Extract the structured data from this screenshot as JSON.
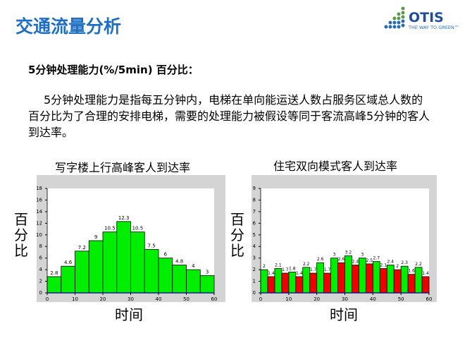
{
  "title": "交通流量分析",
  "logo": {
    "brand": "OTIS",
    "tagline": "THE WAY TO GREEN™"
  },
  "subtitle": "5分钟处理能力(%/5min) 百分比：",
  "paragraph": "5分钟处理能力是指每五分钟内，电梯在单向能运送人数占服务区域总人数的百分比为了合理的安排电梯，需要的处理能力被假设等同于客流高峰5分钟的客人到达率。",
  "chart_data": [
    {
      "type": "bar",
      "title": "写字楼上行高峰客人到达率",
      "xlabel": "时间",
      "ylabel": "百分比",
      "x": [
        0,
        5,
        10,
        15,
        20,
        25,
        30,
        35,
        40,
        45,
        50,
        55
      ],
      "bin_width": 5,
      "values": [
        2.8,
        4.6,
        7.2,
        9,
        10.5,
        12.3,
        10.5,
        7.5,
        6,
        4.8,
        4,
        3
      ],
      "xlim": [
        0,
        60
      ],
      "ylim": [
        0,
        18
      ],
      "xticks": [
        0,
        10,
        20,
        30,
        40,
        50,
        60
      ],
      "yticks": [
        0,
        2,
        4,
        6,
        8,
        10,
        12,
        14,
        16,
        18
      ],
      "colors": [
        "#00ee00"
      ]
    },
    {
      "type": "bar",
      "title": "住宅双向模式客人到达率",
      "xlabel": "时间",
      "ylabel": "百分比",
      "x": [
        0,
        5,
        10,
        15,
        20,
        25,
        30,
        35,
        40,
        45,
        50,
        55
      ],
      "bin_width": 5,
      "series": [
        {
          "values": [
            2,
            2.1,
            1.8,
            2.2,
            2.6,
            3,
            3.2,
            3,
            2.7,
            2.4,
            2.3,
            2.2
          ],
          "color": "#00ee00"
        },
        {
          "values": [
            1.4,
            1.7,
            1.4,
            1.7,
            1.7,
            2.6,
            2.4,
            2.5,
            2.1,
            2,
            1.6,
            1.4
          ],
          "color": "#ee0000"
        }
      ],
      "xlim": [
        0,
        60
      ],
      "ylim": [
        0,
        9
      ],
      "xticks": [
        0,
        10,
        20,
        30,
        40,
        50,
        60
      ],
      "yticks": [
        0,
        1,
        2,
        3,
        4,
        5,
        6,
        7,
        8,
        9
      ]
    }
  ]
}
